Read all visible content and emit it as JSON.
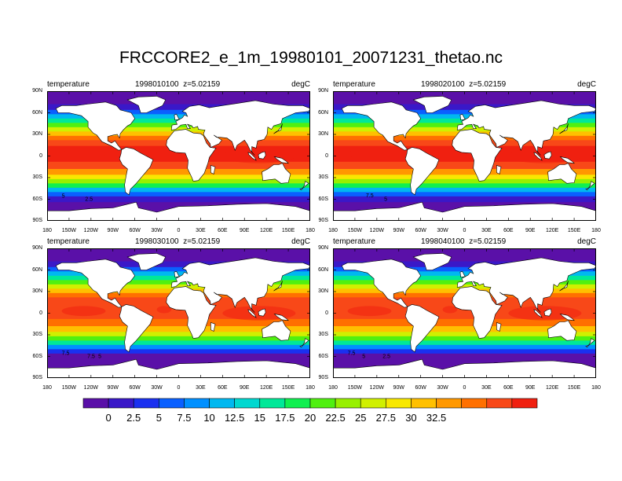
{
  "title": "FRCCORE2_e_1m_19980101_20071231_thetao.nc",
  "panels": [
    {
      "variable": "temperature",
      "time": "1998010100",
      "level": "z=5.02159",
      "units": "degC",
      "contour_labels": [
        "5",
        "2.5"
      ]
    },
    {
      "variable": "temperature",
      "time": "1998020100",
      "level": "z=5.02159",
      "units": "degC",
      "contour_labels": [
        "7.5",
        "5"
      ]
    },
    {
      "variable": "temperature",
      "time": "1998030100",
      "level": "z=5.02159",
      "units": "degC",
      "contour_labels": [
        "7.5",
        "7.5",
        "5"
      ]
    },
    {
      "variable": "temperature",
      "time": "1998040100",
      "level": "z=5.02159",
      "units": "degC",
      "contour_labels": [
        "7.5",
        "5",
        "2.5"
      ]
    }
  ],
  "lat_ticks": [
    "90N",
    "60N",
    "30N",
    "0",
    "30S",
    "60S",
    "90S"
  ],
  "lon_ticks": [
    "180",
    "150W",
    "120W",
    "90W",
    "60W",
    "30W",
    "0",
    "30E",
    "60E",
    "90E",
    "120E",
    "150E",
    "180"
  ],
  "colorbar": {
    "labels": [
      "0",
      "2.5",
      "5",
      "7.5",
      "10",
      "12.5",
      "15",
      "17.5",
      "20",
      "22.5",
      "25",
      "27.5",
      "30",
      "32.5"
    ],
    "colors": [
      "#5a10a8",
      "#3a18c8",
      "#1a30f0",
      "#0a60ff",
      "#0090ff",
      "#00b8f0",
      "#00d8d0",
      "#00e898",
      "#10f050",
      "#50f010",
      "#98f000",
      "#d0f000",
      "#f8e800",
      "#ffc000",
      "#ff9800",
      "#ff7000",
      "#f84818",
      "#f02010"
    ]
  }
}
